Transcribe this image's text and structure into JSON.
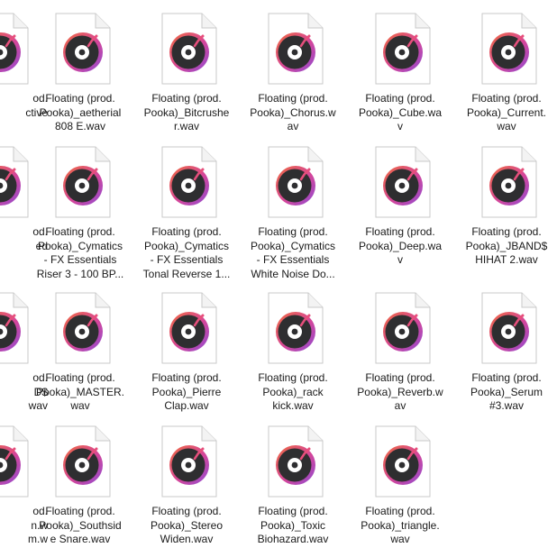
{
  "colors": {
    "page_bg": "#ffffff",
    "text": "#1a1a1a",
    "icon_ring": [
      "#f06a3e",
      "#d5469a",
      "#8e4bd3"
    ],
    "icon_disc": "#2e2e30",
    "icon_needle": "#e64f7c"
  },
  "files": [
    {
      "row": 0,
      "col": 0,
      "name_lines": [
        "od.",
        "ctive"
      ],
      "icon": "audio-file-icon"
    },
    {
      "row": 0,
      "col": 1,
      "name_lines": [
        "Floating (prod.",
        "Pooka)_aetherial",
        "808 E.wav"
      ],
      "icon": "audio-file-icon"
    },
    {
      "row": 0,
      "col": 2,
      "name_lines": [
        "Floating (prod.",
        "Pooka)_Bitcrushe",
        "r.wav"
      ],
      "icon": "audio-file-icon"
    },
    {
      "row": 0,
      "col": 3,
      "name_lines": [
        "Floating (prod.",
        "Pooka)_Chorus.w",
        "av"
      ],
      "icon": "audio-file-icon"
    },
    {
      "row": 0,
      "col": 4,
      "name_lines": [
        "Floating (prod.",
        "Pooka)_Cube.wa",
        "v"
      ],
      "icon": "audio-file-icon"
    },
    {
      "row": 0,
      "col": 5,
      "name_lines": [
        "Floating (prod.",
        "Pooka)_Current.",
        "wav"
      ],
      "icon": "audio-file-icon"
    },
    {
      "row": 1,
      "col": 0,
      "name_lines": [
        "od.",
        "ed"
      ],
      "icon": "audio-file-icon"
    },
    {
      "row": 1,
      "col": 1,
      "name_lines": [
        "Floating (prod.",
        "Pooka)_Cymatics",
        "- FX Essentials",
        "Riser 3 - 100 BP..."
      ],
      "icon": "audio-file-icon"
    },
    {
      "row": 1,
      "col": 2,
      "name_lines": [
        "Floating (prod.",
        "Pooka)_Cymatics",
        "- FX Essentials",
        "Tonal Reverse 1..."
      ],
      "icon": "audio-file-icon"
    },
    {
      "row": 1,
      "col": 3,
      "name_lines": [
        "Floating (prod.",
        "Pooka)_Cymatics",
        "- FX Essentials",
        "White Noise Do..."
      ],
      "icon": "audio-file-icon"
    },
    {
      "row": 1,
      "col": 4,
      "name_lines": [
        "Floating (prod.",
        "Pooka)_Deep.wa",
        "v"
      ],
      "icon": "audio-file-icon"
    },
    {
      "row": 1,
      "col": 5,
      "name_lines": [
        "Floating (prod.",
        "Pooka)_JBAND$",
        "HIHAT 2.wav"
      ],
      "icon": "audio-file-icon"
    },
    {
      "row": 2,
      "col": 0,
      "name_lines": [
        "od.",
        "D$",
        "wav"
      ],
      "icon": "audio-file-icon"
    },
    {
      "row": 2,
      "col": 1,
      "name_lines": [
        "Floating (prod.",
        "Pooka)_MASTER.",
        "wav"
      ],
      "icon": "audio-file-icon"
    },
    {
      "row": 2,
      "col": 2,
      "name_lines": [
        "Floating (prod.",
        "Pooka)_Pierre",
        "Clap.wav"
      ],
      "icon": "audio-file-icon"
    },
    {
      "row": 2,
      "col": 3,
      "name_lines": [
        "Floating (prod.",
        "Pooka)_rack",
        "kick.wav"
      ],
      "icon": "audio-file-icon"
    },
    {
      "row": 2,
      "col": 4,
      "name_lines": [
        "Floating (prod.",
        "Pooka)_Reverb.w",
        "av"
      ],
      "icon": "audio-file-icon"
    },
    {
      "row": 2,
      "col": 5,
      "name_lines": [
        "Floating (prod.",
        "Pooka)_Serum",
        "#3.wav"
      ],
      "icon": "audio-file-icon"
    },
    {
      "row": 3,
      "col": 0,
      "name_lines": [
        "od.",
        "n.w",
        "m.w"
      ],
      "icon": "audio-file-icon"
    },
    {
      "row": 3,
      "col": 1,
      "name_lines": [
        "Floating (prod.",
        "Pooka)_Southsid",
        "e Snare.wav"
      ],
      "icon": "audio-file-icon"
    },
    {
      "row": 3,
      "col": 2,
      "name_lines": [
        "Floating (prod.",
        "Pooka)_Stereo",
        "Widen.wav"
      ],
      "icon": "audio-file-icon"
    },
    {
      "row": 3,
      "col": 3,
      "name_lines": [
        "Floating (prod.",
        "Pooka)_Toxic",
        "Biohazard.wav"
      ],
      "icon": "audio-file-icon"
    },
    {
      "row": 3,
      "col": 4,
      "name_lines": [
        "Floating (prod.",
        "Pooka)_triangle.",
        "wav"
      ],
      "icon": "audio-file-icon"
    }
  ]
}
